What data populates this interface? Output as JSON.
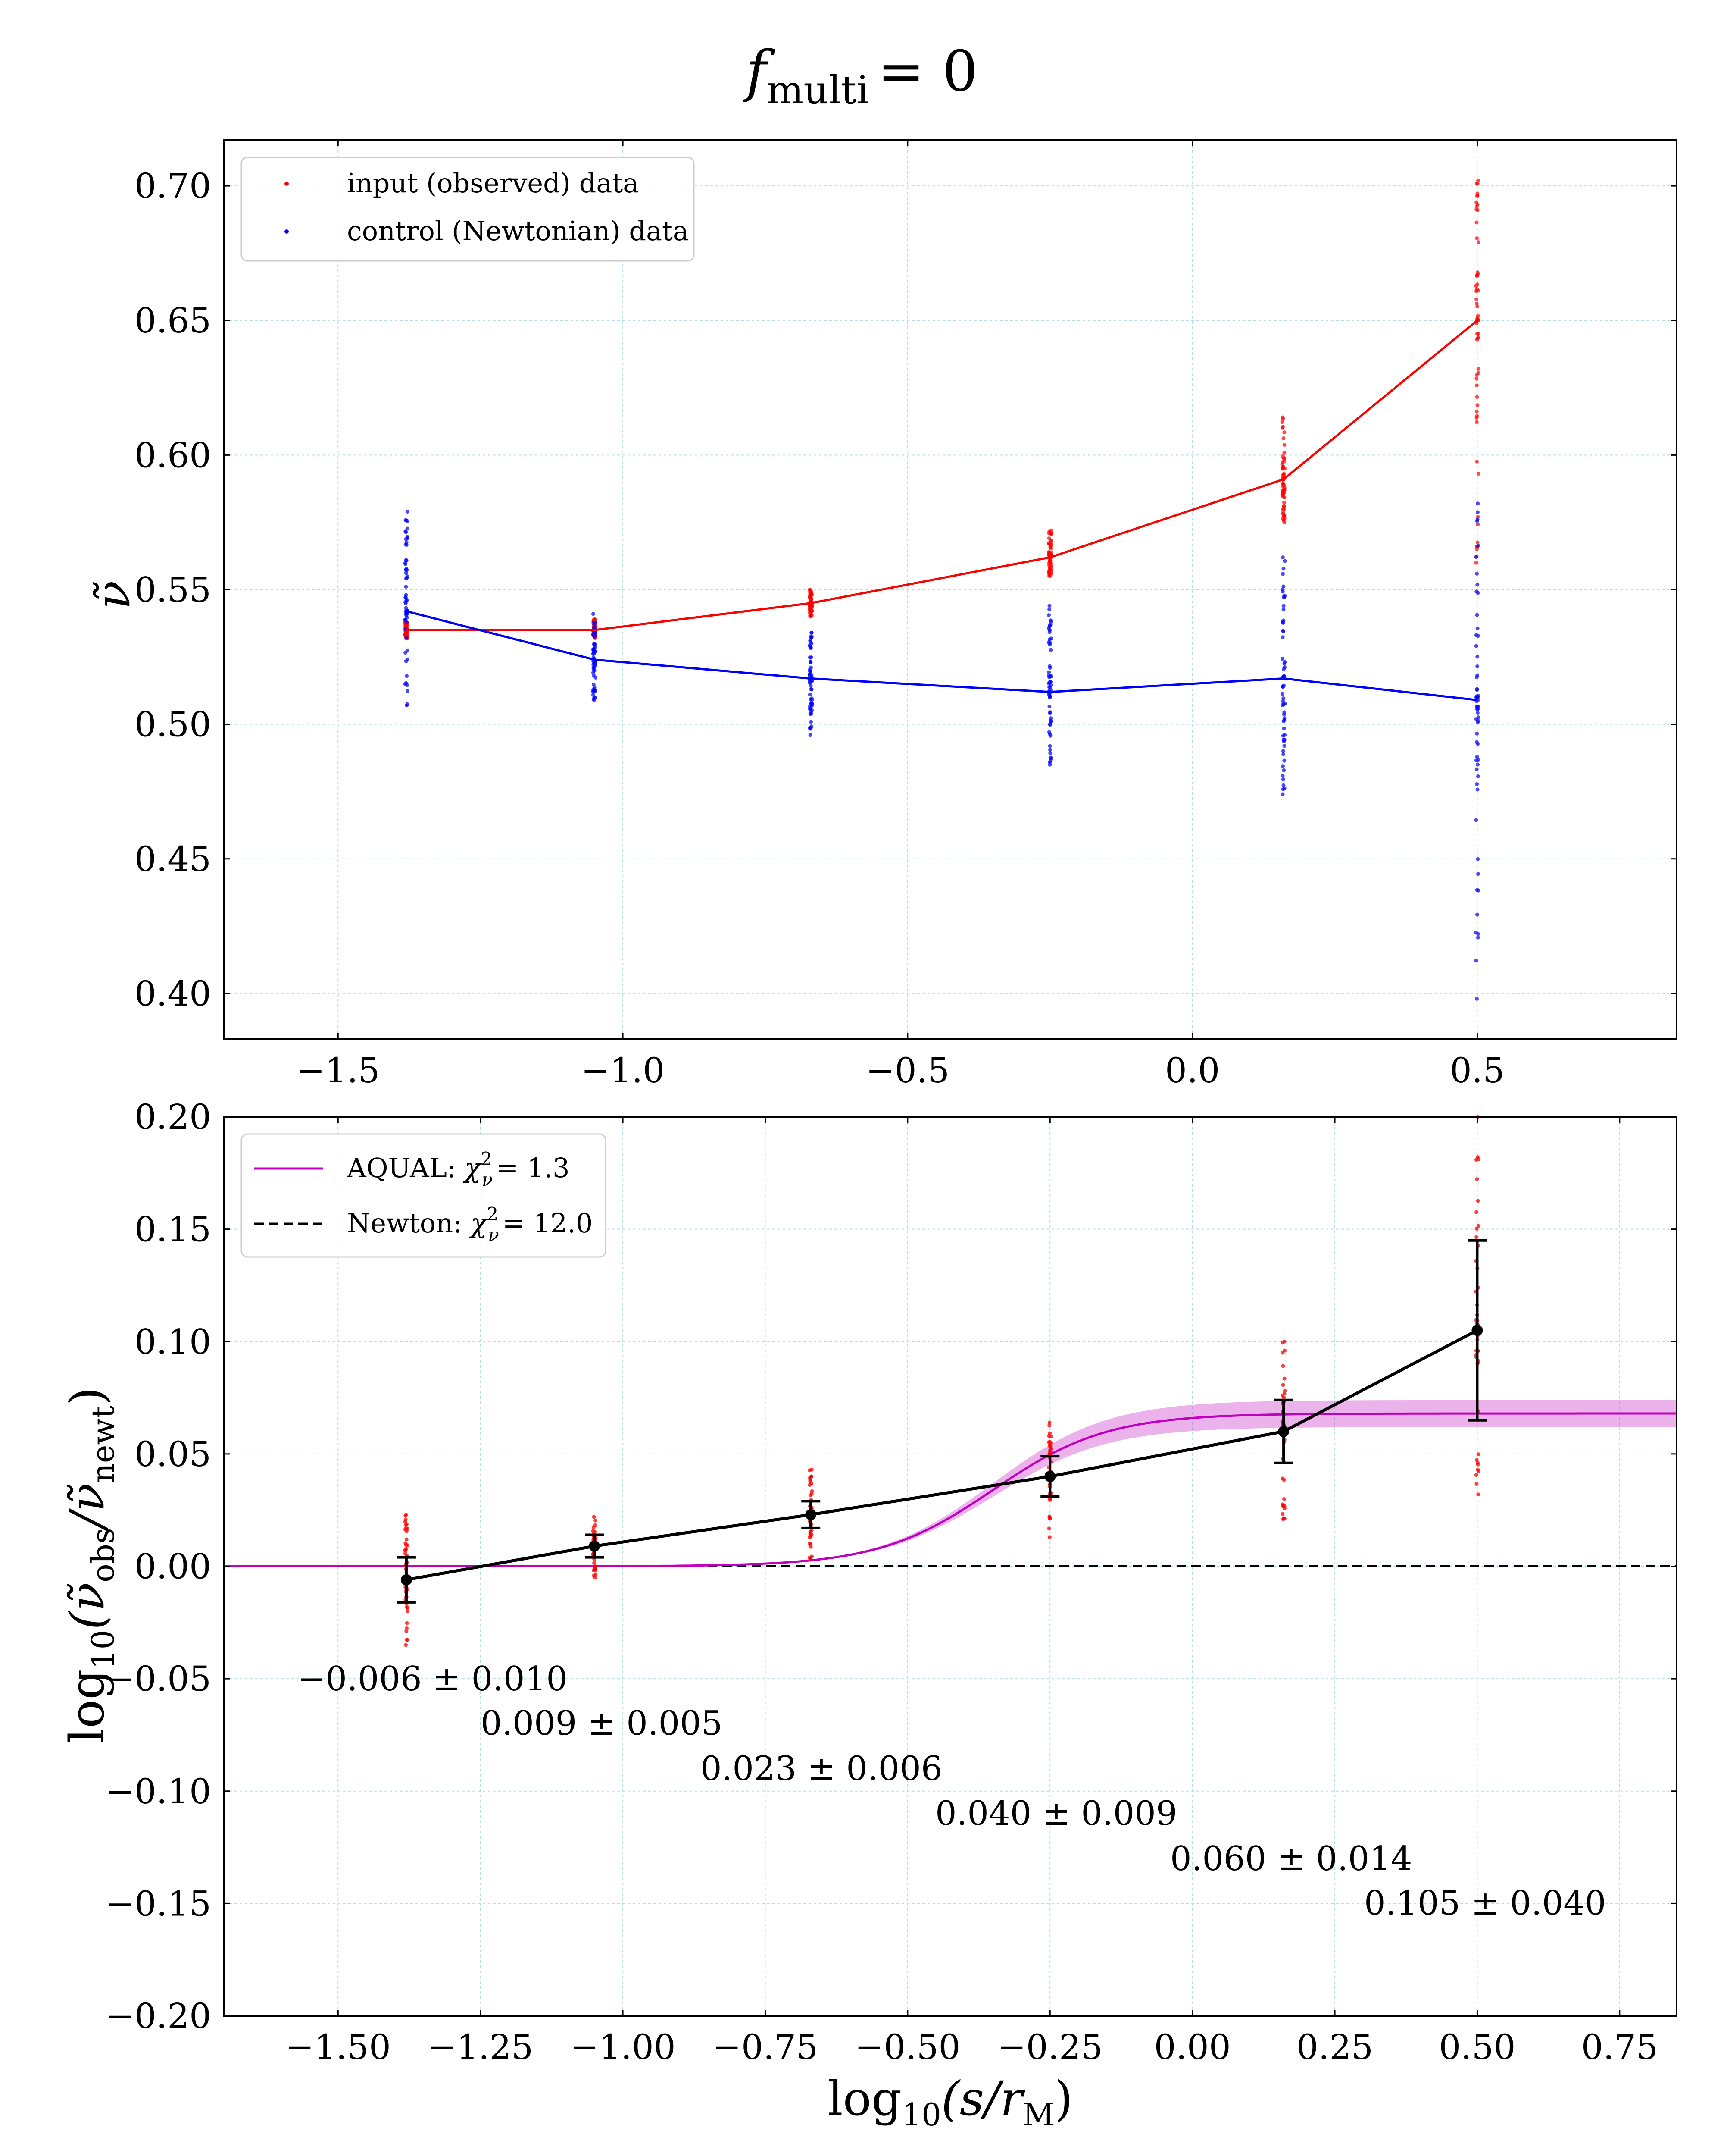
{
  "chart_data": [
    {
      "type": "line",
      "panel": "top",
      "title": "f_multi = 0",
      "title_main": "f",
      "title_sub": "multi",
      "title_rest": "= 0",
      "ylabel": "ν̃",
      "xlim": [
        -1.7,
        0.85
      ],
      "ylim": [
        0.383,
        0.717
      ],
      "xticks": [
        -1.5,
        -1.0,
        -0.5,
        0.0,
        0.5
      ],
      "xtick_labels": [
        "−1.5",
        "−1.0",
        "−0.5",
        "0.0",
        "0.5"
      ],
      "yticks": [
        0.4,
        0.45,
        0.5,
        0.55,
        0.6,
        0.65,
        0.7
      ],
      "ytick_labels": [
        "0.40",
        "0.45",
        "0.50",
        "0.55",
        "0.60",
        "0.65",
        "0.70"
      ],
      "grid": true,
      "legend_position": "top-left",
      "x": [
        -1.38,
        -1.05,
        -0.67,
        -0.25,
        0.16,
        0.5
      ],
      "series": [
        {
          "name": "input (observed) data",
          "color": "#ff0000",
          "values": [
            0.535,
            0.535,
            0.545,
            0.562,
            0.591,
            0.65
          ],
          "spread_min": [
            0.532,
            0.532,
            0.54,
            0.555,
            0.575,
            0.56
          ],
          "spread_max": [
            0.538,
            0.539,
            0.55,
            0.572,
            0.614,
            0.702
          ]
        },
        {
          "name": "control (Newtonian) data",
          "color": "#0000ff",
          "values": [
            0.542,
            0.524,
            0.517,
            0.512,
            0.517,
            0.509
          ],
          "spread_min": [
            0.507,
            0.509,
            0.496,
            0.485,
            0.474,
            0.398
          ],
          "spread_max": [
            0.579,
            0.541,
            0.534,
            0.544,
            0.562,
            0.582
          ]
        }
      ]
    },
    {
      "type": "line",
      "panel": "bottom",
      "xlabel": "log10(s/r_M)",
      "xlabel_prefix": "log",
      "xlabel_sub": "10",
      "xlabel_body": "(s/r",
      "xlabel_sub2": "M",
      "xlabel_end": ")",
      "ylabel": "log10(ν̃obs/ν̃newt)",
      "ylabel_prefix": "log",
      "ylabel_sub": "10",
      "ylabel_open": "(ν̃",
      "ylabel_sub_obs": "obs",
      "ylabel_mid": "/ν̃",
      "ylabel_sub_newt": "newt",
      "ylabel_close": ")",
      "xlim": [
        -1.7,
        0.85
      ],
      "ylim": [
        -0.2,
        0.2
      ],
      "xticks": [
        -1.5,
        -1.25,
        -1.0,
        -0.75,
        -0.5,
        -0.25,
        0.0,
        0.25,
        0.5,
        0.75
      ],
      "xtick_labels": [
        "−1.50",
        "−1.25",
        "−1.00",
        "−0.75",
        "−0.50",
        "−0.25",
        "0.00",
        "0.25",
        "0.50",
        "0.75"
      ],
      "yticks": [
        -0.2,
        -0.15,
        -0.1,
        -0.05,
        0.0,
        0.05,
        0.1,
        0.15,
        0.2
      ],
      "ytick_labels": [
        "−0.20",
        "−0.15",
        "−0.10",
        "−0.05",
        "0.00",
        "0.05",
        "0.10",
        "0.15",
        "0.20"
      ],
      "grid": true,
      "legend_position": "top-left",
      "x": [
        -1.38,
        -1.05,
        -0.67,
        -0.25,
        0.16,
        0.5
      ],
      "values": [
        -0.006,
        0.009,
        0.023,
        0.04,
        0.06,
        0.105
      ],
      "errors": [
        0.01,
        0.005,
        0.006,
        0.009,
        0.014,
        0.04
      ],
      "scatter_min": [
        -0.035,
        -0.005,
        0.003,
        0.013,
        0.021,
        0.032
      ],
      "scatter_max": [
        0.023,
        0.022,
        0.043,
        0.064,
        0.1,
        0.2
      ],
      "aqual_amplitude": 0.068,
      "aqual_band": 0.006,
      "aqual_center": -0.35,
      "aqual_width": 0.1,
      "newton_value": 0.0,
      "legend": [
        {
          "name": "AQUAL",
          "chi": "χ",
          "chi_sup": "2",
          "chi_sub": "ν",
          "chi_value": "= 1.3",
          "color": "#c000c0",
          "style": "solid"
        },
        {
          "name": "Newton",
          "chi": "χ",
          "chi_sup": "2",
          "chi_sub": "ν",
          "chi_value": "= 12.0",
          "color": "#000000",
          "style": "dashed"
        }
      ],
      "annotations": [
        "−0.006 ± 0.010",
        "0.009 ± 0.005",
        "0.023 ± 0.006",
        "0.040 ± 0.009",
        "0.060 ± 0.014",
        "0.105 ± 0.040"
      ]
    }
  ]
}
